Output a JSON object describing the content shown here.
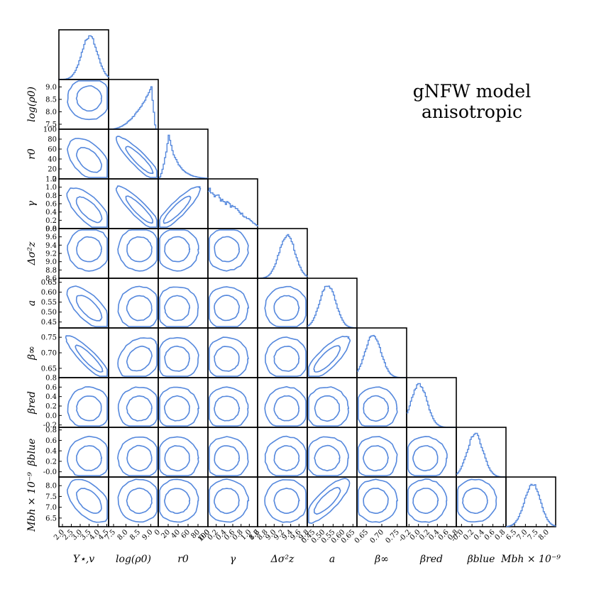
{
  "title_lines": [
    "gNFW model",
    "anisotropic"
  ],
  "chart_data": {
    "type": "corner",
    "contour_levels": [
      "inner",
      "outer"
    ],
    "color": "#5588dd",
    "parameters": [
      {
        "label": "Υ⋆,v",
        "range": [
          1.8,
          4.6
        ],
        "ticks": [
          "2.0",
          "2.5",
          "3.0",
          "3.5",
          "4.0",
          "4.5"
        ],
        "peak": 3.5
      },
      {
        "label": "log(ρ0)",
        "range": [
          7.3,
          9.3
        ],
        "ticks": [
          "7.5",
          "8.0",
          "8.5",
          "9.0"
        ],
        "peak": 9.0
      },
      {
        "label": "r0",
        "range": [
          0,
          100
        ],
        "ticks": [
          "0",
          "20",
          "40",
          "60",
          "80",
          "100"
        ],
        "peak": 20
      },
      {
        "label": "γ",
        "range": [
          0.0,
          1.2
        ],
        "ticks": [
          "0.0",
          "0.2",
          "0.4",
          "0.6",
          "0.8",
          "1.0",
          "1.2"
        ],
        "peak": 0.05
      },
      {
        "label": "Δσ²z",
        "range": [
          8.6,
          9.8
        ],
        "ticks": [
          "8.6",
          "8.8",
          "9.0",
          "9.2",
          "9.4",
          "9.6",
          "9.8"
        ],
        "peak": 9.3
      },
      {
        "label": "a",
        "range": [
          0.42,
          0.67
        ],
        "ticks": [
          "0.45",
          "0.50",
          "0.55",
          "0.60",
          "0.65"
        ],
        "peak": 0.52
      },
      {
        "label": "β∞",
        "range": [
          0.62,
          0.78
        ],
        "ticks": [
          "0.65",
          "0.70",
          "0.75"
        ],
        "peak": 0.67
      },
      {
        "label": "βred",
        "range": [
          -0.25,
          0.8
        ],
        "ticks": [
          "-0.2",
          "0.0",
          "0.2",
          "0.4",
          "0.6",
          "0.8"
        ],
        "peak": 0.0
      },
      {
        "label": "βblue",
        "range": [
          -0.1,
          0.85
        ],
        "ticks": [
          "-0.0",
          "0.2",
          "0.4",
          "0.6",
          "0.8"
        ],
        "peak": 0.25
      },
      {
        "label": "Mbh × 10⁻⁹",
        "range": [
          6.1,
          8.4
        ],
        "ticks": [
          "6.5",
          "7.0",
          "7.5",
          "8.0"
        ],
        "peak": 7.3
      }
    ]
  }
}
